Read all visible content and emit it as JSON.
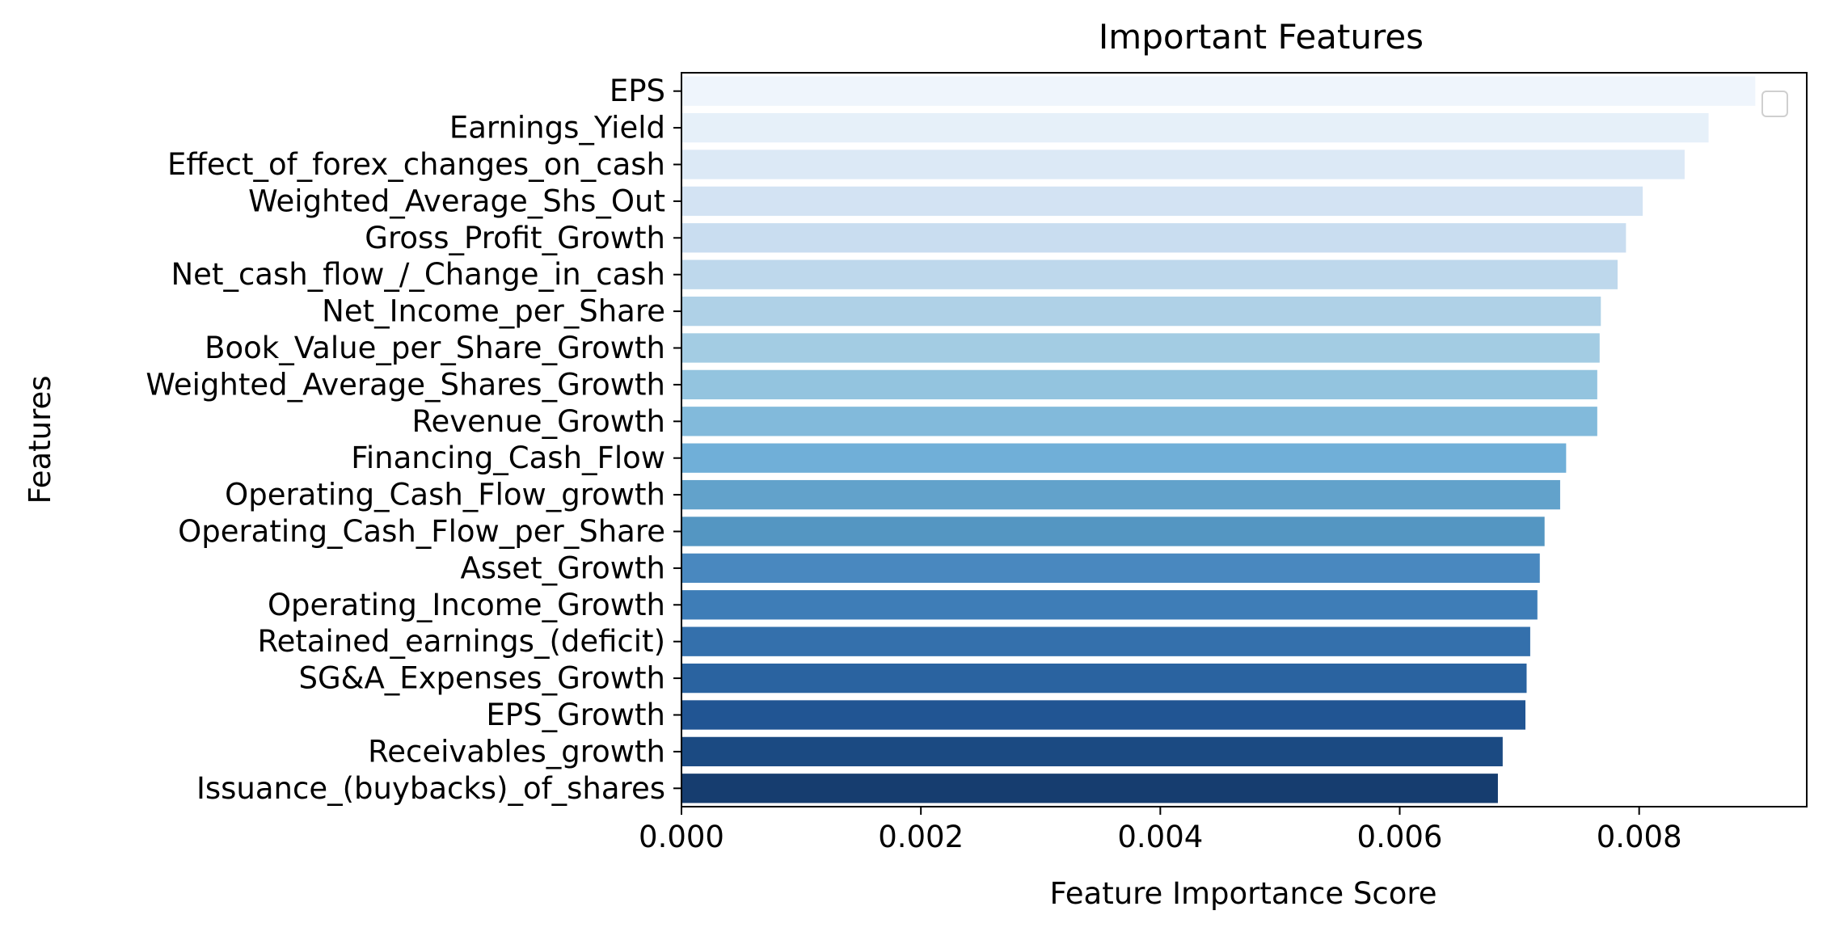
{
  "chart_data": {
    "type": "bar",
    "orientation": "horizontal",
    "title": "Important Features",
    "xlabel": "Feature Importance Score",
    "ylabel": "Features",
    "xlim": [
      0,
      0.0094
    ],
    "xticks": [
      "0.000",
      "0.002",
      "0.004",
      "0.006",
      "0.008"
    ],
    "xtick_values": [
      0,
      0.002,
      0.004,
      0.006,
      0.008
    ],
    "grid": false,
    "legend": "top-right (empty)",
    "colormap": "Blues",
    "categories": [
      "EPS",
      "Earnings_Yield",
      "Effect_of_forex_changes_on_cash",
      "Weighted_Average_Shs_Out",
      "Gross_Profit_Growth",
      "Net_cash_flow_/_Change_in_cash",
      "Net_Income_per_Share",
      "Book_Value_per_Share_Growth",
      "Weighted_Average_Shares_Growth",
      "Revenue_Growth",
      "Financing_Cash_Flow",
      "Operating_Cash_Flow_growth",
      "Operating_Cash_Flow_per_Share",
      "Asset_Growth",
      "Operating_Income_Growth",
      "Retained_earnings_(deficit)",
      "SG&A_Expenses_Growth",
      "EPS_Growth",
      "Receivables_growth",
      "Issuance_(buybacks)_of_shares"
    ],
    "values": [
      0.00897,
      0.00858,
      0.00838,
      0.00803,
      0.00789,
      0.00782,
      0.00768,
      0.00767,
      0.00765,
      0.00765,
      0.00739,
      0.00734,
      0.00721,
      0.00717,
      0.00715,
      0.00709,
      0.00706,
      0.00705,
      0.00686,
      0.00682
    ],
    "colors": [
      "#eff5fc",
      "#e6f0f9",
      "#dce9f6",
      "#d3e3f3",
      "#c9ddf0",
      "#bed8ec",
      "#afd1e7",
      "#a3cce3",
      "#93c4df",
      "#82badb",
      "#70afd8",
      "#62a2cb",
      "#5496c2",
      "#4988bf",
      "#3e7db7",
      "#3470ac",
      "#2a63a0",
      "#215593",
      "#1b4a82",
      "#163d6f"
    ]
  }
}
